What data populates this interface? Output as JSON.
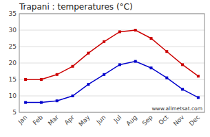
{
  "chart_data": {
    "type": "line",
    "title": "Trapani : temperatures (°C)",
    "categories": [
      "Jan",
      "Feb",
      "Mar",
      "Apr",
      "May",
      "Jun",
      "Jul",
      "Aug",
      "Sep",
      "Oct",
      "Nov",
      "Dec"
    ],
    "series": [
      {
        "color": "#cc0000",
        "marker": "square",
        "values": [
          15,
          15,
          16.5,
          19,
          23,
          26.5,
          29.5,
          30,
          27.5,
          23.5,
          19.5,
          16
        ]
      },
      {
        "color": "#0000cc",
        "marker": "square",
        "values": [
          8,
          8,
          8.5,
          10,
          13.5,
          16.5,
          19.5,
          20.5,
          18.5,
          15.5,
          12,
          9.5
        ]
      }
    ],
    "ylim": [
      5,
      35
    ],
    "yticks": [
      5,
      10,
      15,
      20,
      25,
      30,
      35
    ],
    "grid": true,
    "annotation": "www.allmetsat.com"
  }
}
